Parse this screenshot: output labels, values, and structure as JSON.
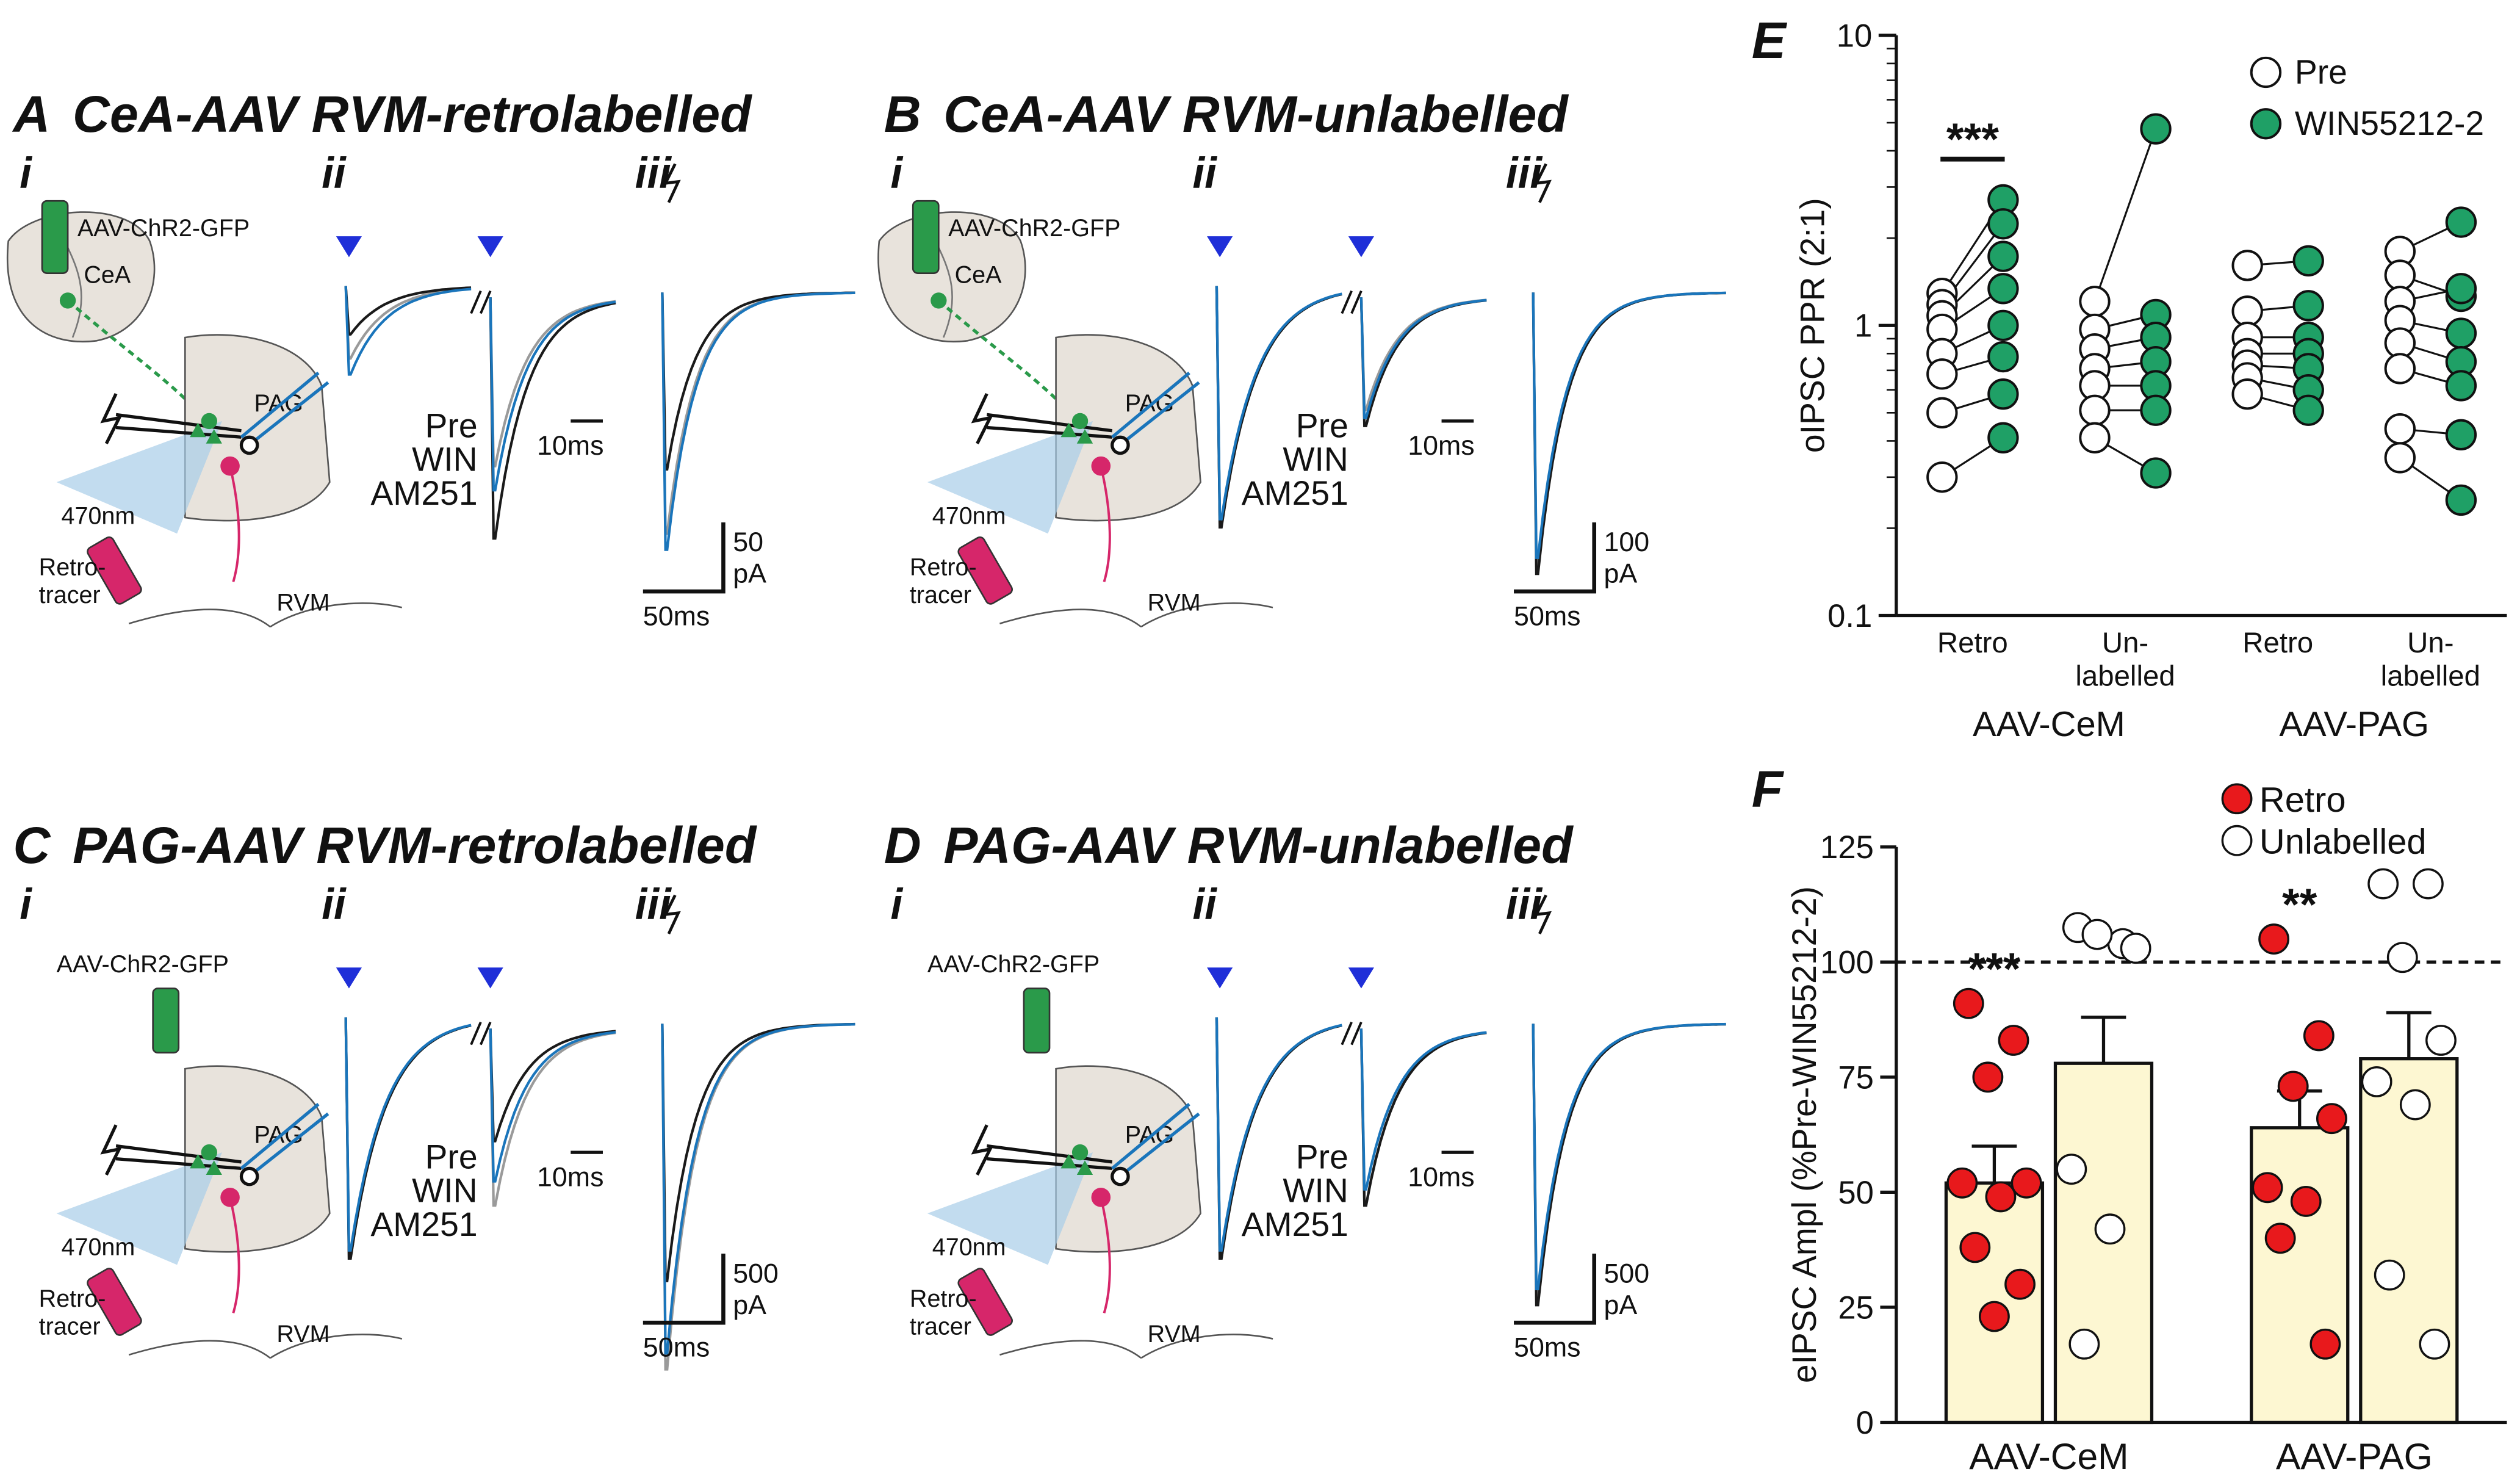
{
  "panels": [
    {
      "letter": "A",
      "title": "CeA-AAV RVM-retrolabelled",
      "subpanels": [
        "i",
        "ii",
        "iii"
      ],
      "virus": "AAV-ChR2-GFP",
      "region": "CeA",
      "target": "PAG",
      "light": "470nm",
      "tracer": "Retro-\ntracer",
      "rvm": "RVM",
      "traces": [
        "Pre",
        "WIN",
        "AM251"
      ],
      "time_scale_ii": "10ms",
      "amp_scale": "50\npA",
      "time_scale_iii": "50ms"
    },
    {
      "letter": "B",
      "title": "CeA-AAV RVM-unlabelled",
      "subpanels": [
        "i",
        "ii",
        "iii"
      ],
      "virus": "AAV-ChR2-GFP",
      "region": "CeA",
      "target": "PAG",
      "light": "470nm",
      "tracer": "Retro-\ntracer",
      "rvm": "RVM",
      "traces": [
        "Pre",
        "WIN",
        "AM251"
      ],
      "time_scale_ii": "10ms",
      "amp_scale": "100\npA",
      "time_scale_iii": "50ms"
    },
    {
      "letter": "C",
      "title": "PAG-AAV RVM-retrolabelled",
      "subpanels": [
        "i",
        "ii",
        "iii"
      ],
      "virus": "AAV-ChR2-GFP",
      "target": "PAG",
      "light": "470nm",
      "tracer": "Retro-\ntracer",
      "rvm": "RVM",
      "traces": [
        "Pre",
        "WIN",
        "AM251"
      ],
      "time_scale_ii": "10ms",
      "amp_scale": "500\npA",
      "time_scale_iii": "50ms"
    },
    {
      "letter": "D",
      "title": "PAG-AAV RVM-unlabelled",
      "subpanels": [
        "i",
        "ii",
        "iii"
      ],
      "virus": "AAV-ChR2-GFP",
      "target": "PAG",
      "light": "470nm",
      "tracer": "Retro-\ntracer",
      "rvm": "RVM",
      "traces": [
        "Pre",
        "WIN",
        "AM251"
      ],
      "time_scale_ii": "10ms",
      "amp_scale": "500\npA",
      "time_scale_iii": "50ms"
    }
  ],
  "trace_colors": [
    "#9a9a9a",
    "#1a75bb",
    "#1a1a1a"
  ],
  "chart_data": [
    {
      "type": "paired-scatter",
      "letter": "E",
      "ylabel": "oIPSC PPR (2:1)",
      "log_y": true,
      "ylim": [
        0.1,
        10
      ],
      "yticks": [
        0.1,
        1,
        10
      ],
      "categories": [
        "Retro",
        "Un-\nlabelled",
        "Retro",
        "Un-\nlabelled"
      ],
      "groups": [
        "AAV-CeM",
        "AAV-PAG"
      ],
      "series": [
        {
          "name": "Pre",
          "color": "#ffffff",
          "values": [
            [
              1.29,
              1.18,
              1.08,
              0.97,
              0.8,
              0.68,
              0.5,
              0.3
            ],
            [
              1.21,
              0.97,
              0.83,
              0.71,
              0.62,
              0.51,
              0.41
            ],
            [
              1.61,
              1.12,
              0.91,
              0.8,
              0.73,
              0.66,
              0.58
            ],
            [
              1.8,
              1.49,
              1.21,
              1.04,
              0.87,
              0.71,
              0.44,
              0.35
            ]
          ]
        },
        {
          "name": "WIN55212-2",
          "color": "#1fa066",
          "values": [
            [
              2.71,
              2.24,
              1.73,
              1.34,
              1.0,
              0.78,
              0.58,
              0.41
            ],
            [
              4.76,
              1.09,
              0.91,
              0.75,
              0.62,
              0.51,
              0.31
            ],
            [
              1.67,
              1.17,
              0.91,
              0.8,
              0.71,
              0.6,
              0.51
            ],
            [
              2.27,
              1.26,
              1.34,
              0.94,
              0.75,
              0.62,
              0.42,
              0.25
            ]
          ]
        }
      ],
      "annotations": [
        {
          "text": "***"
        }
      ]
    },
    {
      "type": "bar",
      "letter": "F",
      "ylabel": "eIPSC Ampl (%Pre-WIN55212-2)",
      "ylim": [
        0,
        125
      ],
      "yticks": [
        0,
        25,
        50,
        75,
        100,
        125
      ],
      "hline": 100,
      "categories": [
        "AAV-CeM",
        "AAV-PAG"
      ],
      "bar_color": "#fdf7d2",
      "series": [
        {
          "name": "Retro",
          "color": "#e8191c",
          "values": [
            52,
            64
          ],
          "errors": [
            8,
            8
          ],
          "points": [
            [
              91,
              83,
              75,
              52,
              52,
              49,
              38,
              30,
              23
            ],
            [
              105,
              84,
              73,
              66,
              51,
              48,
              40,
              17
            ]
          ]
        },
        {
          "name": "Unlabelled",
          "color": "#ffffff",
          "values": [
            78,
            79
          ],
          "errors": [
            10,
            10
          ],
          "points": [
            [
              107.5,
              104,
              106,
              103,
              55,
              42,
              17
            ],
            [
              117,
              117,
              101,
              83,
              74,
              69,
              32,
              17
            ]
          ]
        }
      ],
      "annotations": [
        {
          "text": "***"
        },
        {
          "text": "**"
        }
      ]
    }
  ]
}
